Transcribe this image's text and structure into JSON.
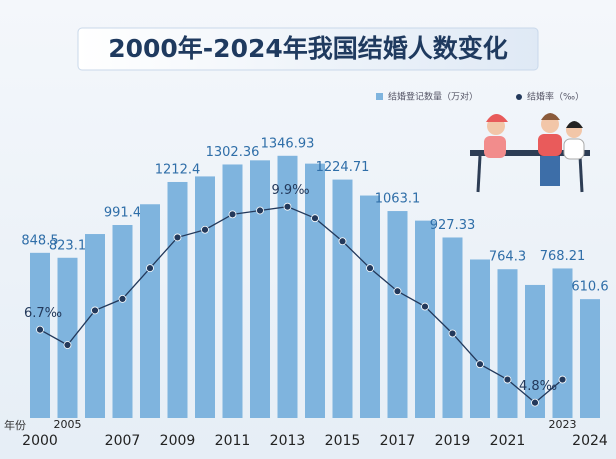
{
  "chart_data": {
    "type": "bar-line",
    "title": "2000年-2024年我国结婚人数变化",
    "x_label": "年份",
    "categories": [
      "2000",
      "2005",
      null,
      "2007",
      null,
      "2009",
      null,
      "2011",
      null,
      "2013",
      null,
      "2015",
      null,
      "2017",
      null,
      "2019",
      null,
      "2021",
      null,
      "2023",
      "2024"
    ],
    "series": [
      {
        "name": "结婚登记数量（万对）",
        "color": "#7fb4de",
        "type": "bar",
        "values": [
          848.5,
          823.1,
          945,
          991.4,
          1098,
          1212.4,
          1241,
          1302.36,
          1323.6,
          1346.93,
          1306.7,
          1224.71,
          1142.8,
          1063.1,
          1013.9,
          927.33,
          814.3,
          764.3,
          683.5,
          768.21,
          610.6
        ],
        "value_labels": [
          "848.5",
          "823.1",
          null,
          "991.4",
          null,
          "1212.4",
          null,
          "1302.36",
          null,
          "1346.93",
          null,
          "1224.71",
          null,
          "1063.1",
          null,
          "927.33",
          null,
          "764.3",
          null,
          "768.21",
          "610.6"
        ]
      },
      {
        "name": "结婚率（‰）",
        "color": "#23395b",
        "type": "line",
        "axis": "y2",
        "values": [
          6.7,
          6.3,
          7.2,
          7.5,
          8.3,
          9.1,
          9.3,
          9.7,
          9.8,
          9.9,
          9.6,
          9.0,
          8.3,
          7.7,
          7.3,
          6.6,
          5.8,
          5.4,
          4.8,
          5.4,
          null
        ],
        "value_labels": [
          "6.7‰",
          null,
          null,
          null,
          null,
          null,
          null,
          null,
          null,
          "9.9‰",
          null,
          null,
          null,
          null,
          null,
          null,
          null,
          null,
          "4.8‰",
          null,
          null
        ]
      }
    ],
    "ylim": [
      0,
      1500
    ],
    "y2lim": [
      4.4,
      12
    ]
  }
}
